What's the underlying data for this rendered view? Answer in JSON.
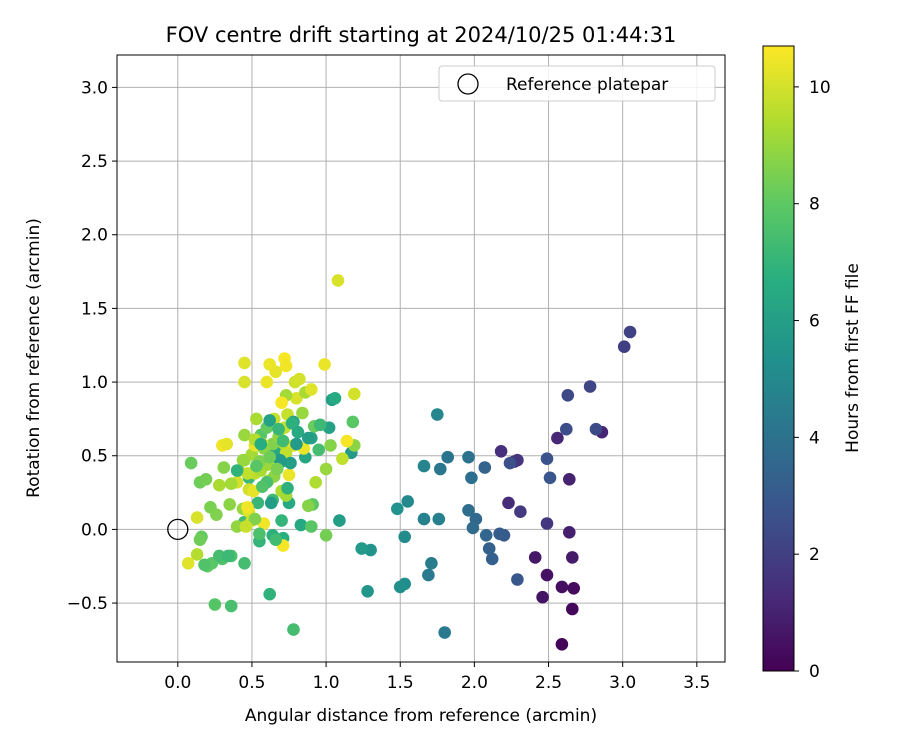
{
  "chart_data": {
    "type": "scatter",
    "title": "FOV centre drift starting at 2024/10/25 01:44:31",
    "xlabel": "Angular distance from reference (arcmin)",
    "ylabel": "Rotation from reference (arcmin)",
    "xlim": [
      -0.41,
      3.69
    ],
    "ylim": [
      -0.9,
      3.22
    ],
    "xticks": [
      0.0,
      0.5,
      1.0,
      1.5,
      2.0,
      2.5,
      3.0,
      3.5
    ],
    "yticks": [
      -0.5,
      0.0,
      0.5,
      1.0,
      1.5,
      2.0,
      2.5,
      3.0
    ],
    "grid": true,
    "legend": {
      "position": "top-right",
      "entries": [
        "Reference platepar"
      ]
    },
    "colormap": "viridis",
    "colorbar": {
      "label": "Hours from first FF file",
      "range": [
        0,
        10.7
      ],
      "ticks": [
        0,
        2,
        4,
        6,
        8,
        10
      ]
    },
    "reference_point": {
      "x": 0.0,
      "y": 0.0
    },
    "columns": [
      "x",
      "y",
      "hours"
    ],
    "points": [
      [
        2.59,
        -0.78,
        0.1
      ],
      [
        2.66,
        -0.54,
        0.2
      ],
      [
        2.67,
        -0.4,
        0.3
      ],
      [
        2.59,
        -0.39,
        0.4
      ],
      [
        2.49,
        -0.31,
        0.5
      ],
      [
        2.46,
        -0.46,
        0.6
      ],
      [
        2.41,
        -0.19,
        0.7
      ],
      [
        2.66,
        -0.19,
        0.8
      ],
      [
        2.64,
        -0.02,
        0.9
      ],
      [
        2.64,
        0.34,
        1.0
      ],
      [
        2.86,
        0.66,
        1.1
      ],
      [
        2.56,
        0.62,
        1.2
      ],
      [
        2.23,
        0.18,
        1.3
      ],
      [
        2.18,
        0.53,
        1.4
      ],
      [
        2.27,
        0.46,
        1.5
      ],
      [
        2.29,
        0.47,
        1.6
      ],
      [
        2.49,
        0.04,
        1.7
      ],
      [
        2.31,
        0.12,
        1.8
      ],
      [
        3.01,
        1.24,
        2.0
      ],
      [
        3.05,
        1.34,
        2.1
      ],
      [
        2.78,
        0.97,
        2.2
      ],
      [
        2.63,
        0.91,
        2.3
      ],
      [
        2.82,
        0.68,
        2.4
      ],
      [
        2.62,
        0.68,
        2.5
      ],
      [
        2.24,
        0.45,
        2.6
      ],
      [
        2.49,
        0.48,
        2.7
      ],
      [
        2.51,
        0.35,
        2.8
      ],
      [
        2.29,
        -0.34,
        2.9
      ],
      [
        2.2,
        -0.04,
        3.0
      ],
      [
        2.17,
        -0.03,
        3.1
      ],
      [
        2.12,
        -0.2,
        3.2
      ],
      [
        2.1,
        -0.13,
        3.3
      ],
      [
        2.07,
        0.42,
        3.4
      ],
      [
        2.08,
        -0.04,
        3.5
      ],
      [
        2.01,
        0.07,
        3.6
      ],
      [
        1.99,
        0.01,
        3.7
      ],
      [
        1.96,
        0.13,
        3.8
      ],
      [
        1.98,
        0.35,
        3.9
      ],
      [
        1.96,
        0.49,
        4.0
      ],
      [
        1.82,
        0.49,
        4.1
      ],
      [
        1.77,
        0.41,
        4.2
      ],
      [
        1.8,
        -0.7,
        4.3
      ],
      [
        1.69,
        -0.31,
        4.4
      ],
      [
        1.71,
        -0.23,
        4.5
      ],
      [
        1.76,
        0.07,
        4.6
      ],
      [
        1.66,
        0.07,
        4.7
      ],
      [
        1.66,
        0.43,
        4.8
      ],
      [
        1.75,
        0.78,
        4.9
      ],
      [
        1.55,
        0.19,
        5.0
      ],
      [
        1.53,
        -0.05,
        5.1
      ],
      [
        1.53,
        -0.37,
        5.2
      ],
      [
        1.5,
        -0.39,
        5.3
      ],
      [
        1.48,
        0.14,
        5.4
      ],
      [
        1.3,
        -0.14,
        5.5
      ],
      [
        1.28,
        -0.42,
        5.6
      ],
      [
        1.24,
        -0.13,
        5.7
      ],
      [
        1.17,
        0.52,
        5.8
      ],
      [
        1.09,
        0.06,
        5.9
      ],
      [
        1.04,
        0.88,
        6.0
      ],
      [
        1.02,
        0.69,
        6.1
      ],
      [
        0.9,
        0.62,
        6.2
      ],
      [
        0.86,
        0.49,
        6.3
      ],
      [
        0.83,
        0.03,
        6.4
      ],
      [
        0.75,
        0.18,
        6.5
      ],
      [
        0.7,
        0.46,
        6.6
      ],
      [
        0.71,
        -0.06,
        6.7
      ],
      [
        0.64,
        -0.04,
        6.8
      ],
      [
        0.62,
        -0.44,
        6.9
      ],
      [
        0.55,
        -0.08,
        7.0
      ],
      [
        0.54,
        0.18,
        7.1
      ],
      [
        0.48,
        0.35,
        7.2
      ],
      [
        0.45,
        0.05,
        7.3
      ],
      [
        0.45,
        -0.23,
        7.4
      ],
      [
        0.36,
        -0.52,
        7.5
      ],
      [
        0.36,
        -0.18,
        7.6
      ],
      [
        0.3,
        -0.2,
        7.7
      ],
      [
        0.25,
        -0.51,
        7.8
      ],
      [
        0.23,
        -0.23,
        7.9
      ],
      [
        0.2,
        -0.25,
        8.0
      ],
      [
        0.16,
        -0.05,
        8.1
      ],
      [
        0.09,
        0.45,
        8.2
      ],
      [
        0.15,
        0.32,
        8.3
      ],
      [
        0.19,
        0.34,
        8.4
      ],
      [
        0.22,
        0.15,
        8.5
      ],
      [
        0.26,
        0.1,
        8.6
      ],
      [
        0.31,
        0.42,
        8.7
      ],
      [
        0.35,
        0.17,
        8.8
      ],
      [
        0.4,
        0.02,
        8.9
      ],
      [
        0.44,
        0.14,
        9.0
      ],
      [
        0.45,
        0.47,
        9.1
      ],
      [
        0.5,
        0.51,
        9.2
      ],
      [
        0.53,
        0.75,
        9.3
      ],
      [
        0.61,
        0.33,
        9.4
      ],
      [
        0.66,
        0.46,
        9.5
      ],
      [
        0.7,
        0.55,
        9.6
      ],
      [
        0.72,
        0.69,
        9.7
      ],
      [
        0.74,
        0.78,
        9.8
      ],
      [
        0.79,
        1.0,
        9.9
      ],
      [
        0.82,
        1.02,
        10.0
      ],
      [
        0.8,
        0.89,
        10.1
      ],
      [
        0.78,
        0.73,
        6.2
      ],
      [
        0.66,
        0.52,
        6.4
      ],
      [
        0.56,
        0.64,
        7.8
      ],
      [
        0.6,
        0.69,
        8.1
      ],
      [
        0.64,
        0.58,
        8.6
      ],
      [
        0.68,
        0.63,
        8.9
      ],
      [
        0.73,
        0.91,
        9.2
      ],
      [
        0.86,
        0.93,
        9.3
      ],
      [
        0.84,
        0.79,
        9.0
      ],
      [
        0.92,
        0.7,
        8.2
      ],
      [
        0.95,
        0.54,
        7.4
      ],
      [
        1.03,
        0.57,
        8.7
      ],
      [
        1.0,
        0.41,
        9.0
      ],
      [
        1.0,
        -0.04,
        8.4
      ],
      [
        0.9,
        0.02,
        7.9
      ],
      [
        0.91,
        0.17,
        8.0
      ],
      [
        0.88,
        0.16,
        8.7
      ],
      [
        0.93,
        0.32,
        9.4
      ],
      [
        1.11,
        0.48,
        9.7
      ],
      [
        1.19,
        0.57,
        8.8
      ],
      [
        1.18,
        0.73,
        7.9
      ],
      [
        1.19,
        0.92,
        10.0
      ],
      [
        1.14,
        0.6,
        10.6
      ],
      [
        1.08,
        1.69,
        10.1
      ],
      [
        0.99,
        1.12,
        10.4
      ],
      [
        0.9,
        0.95,
        10.2
      ],
      [
        0.72,
        1.16,
        10.6
      ],
      [
        0.73,
        1.11,
        10.5
      ],
      [
        0.62,
        1.12,
        10.4
      ],
      [
        0.66,
        1.07,
        10.3
      ],
      [
        0.45,
        1.13,
        10.2
      ],
      [
        0.45,
        1.0,
        10.1
      ],
      [
        0.6,
        1.0,
        10.4
      ],
      [
        0.7,
        0.86,
        10.6
      ],
      [
        0.3,
        0.57,
        10.5
      ],
      [
        0.33,
        0.58,
        10.3
      ],
      [
        0.4,
        0.32,
        10.0
      ],
      [
        0.52,
        0.38,
        9.6
      ],
      [
        0.48,
        0.27,
        9.9
      ],
      [
        0.56,
        0.4,
        9.3
      ],
      [
        0.61,
        0.44,
        9.1
      ],
      [
        0.65,
        0.36,
        8.8
      ],
      [
        0.7,
        0.26,
        9.4
      ],
      [
        0.73,
        0.23,
        9.2
      ],
      [
        0.75,
        0.37,
        10.4
      ],
      [
        0.78,
        0.57,
        10.2
      ],
      [
        0.85,
        0.55,
        10.4
      ],
      [
        0.73,
        0.52,
        9.7
      ],
      [
        0.65,
        0.75,
        9.8
      ],
      [
        0.57,
        0.58,
        10.1
      ],
      [
        0.52,
        0.57,
        10.3
      ],
      [
        0.48,
        0.12,
        10.2
      ],
      [
        0.5,
        0.06,
        10.0
      ],
      [
        0.58,
        0.04,
        10.5
      ],
      [
        0.71,
        -0.11,
        10.6
      ],
      [
        0.13,
        0.08,
        10.1
      ],
      [
        0.07,
        -0.23,
        10.2
      ],
      [
        0.13,
        -0.17,
        9.5
      ],
      [
        0.28,
        0.3,
        9.3
      ],
      [
        0.45,
        0.64,
        9.0
      ],
      [
        0.52,
        0.07,
        8.6
      ],
      [
        0.28,
        -0.18,
        7.4
      ],
      [
        0.34,
        -0.18,
        7.2
      ],
      [
        0.18,
        -0.24,
        7.7
      ],
      [
        0.15,
        -0.07,
        8.3
      ],
      [
        0.41,
        0.4,
        8.9
      ],
      [
        0.44,
        0.47,
        9.0
      ],
      [
        0.55,
        0.46,
        8.6
      ],
      [
        0.58,
        0.55,
        8.8
      ],
      [
        0.52,
        0.61,
        9.5
      ],
      [
        0.47,
        0.38,
        9.7
      ],
      [
        0.51,
        0.26,
        10.3
      ],
      [
        0.47,
        0.15,
        10.5
      ],
      [
        0.36,
        0.31,
        9.2
      ],
      [
        0.46,
        0.02,
        9.8
      ],
      [
        0.4,
        0.4,
        6.9
      ],
      [
        0.56,
        0.58,
        6.6
      ],
      [
        0.62,
        0.74,
        6.1
      ],
      [
        0.68,
        0.68,
        7.1
      ],
      [
        0.71,
        0.6,
        7.3
      ],
      [
        0.77,
        0.72,
        6.8
      ],
      [
        0.81,
        0.66,
        6.5
      ],
      [
        0.88,
        0.62,
        5.9
      ],
      [
        0.96,
        0.71,
        7.2
      ],
      [
        1.06,
        0.89,
        6.5
      ],
      [
        0.8,
        0.58,
        5.8
      ],
      [
        0.76,
        0.45,
        6.0
      ],
      [
        0.69,
        0.47,
        5.7
      ],
      [
        0.74,
        0.28,
        6.8
      ],
      [
        0.64,
        0.2,
        7.3
      ],
      [
        0.6,
        0.32,
        7.5
      ],
      [
        0.57,
        0.29,
        7.7
      ],
      [
        0.53,
        0.43,
        7.9
      ],
      [
        0.62,
        0.49,
        8.3
      ],
      [
        0.67,
        0.41,
        8.5
      ],
      [
        0.7,
        0.06,
        7.0
      ],
      [
        0.66,
        -0.07,
        7.3
      ],
      [
        0.55,
        -0.03,
        7.6
      ],
      [
        0.78,
        -0.68,
        7.4
      ],
      [
        0.63,
        0.18,
        5.9
      ]
    ]
  }
}
